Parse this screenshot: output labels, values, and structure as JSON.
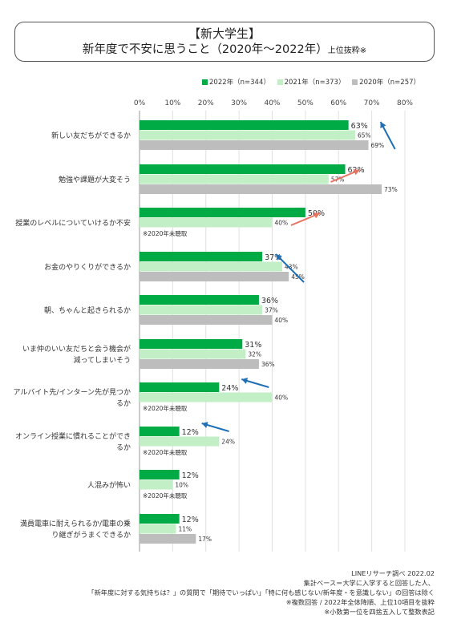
{
  "title": {
    "line1": "【新大学生】",
    "line2": "新年度で不安に思うこと（2020年～2022年）",
    "line2_suffix": "上位抜粋※"
  },
  "colors": {
    "s2022": "#00aa44",
    "s2021": "#c3efc7",
    "s2020": "#bdbdbd",
    "arrow_up": "#e8735f",
    "arrow_down": "#1f6fb5"
  },
  "chart_data": {
    "type": "bar",
    "orientation": "horizontal",
    "xlim": [
      0,
      80
    ],
    "xticks": [
      "0%",
      "10%",
      "20%",
      "30%",
      "40%",
      "50%",
      "60%",
      "70%",
      "80%"
    ],
    "legend_position": "top-right",
    "grid": true,
    "categories": [
      [
        "新しい友だちができるか"
      ],
      [
        "勉強や課題が大変そう"
      ],
      [
        "授業のレベルについていけるか不安"
      ],
      [
        "お金のやりくりができるか"
      ],
      [
        "朝、ちゃんと起きられるか"
      ],
      [
        "いま仲のいい友だちと会う機会が",
        "減ってしまいそう"
      ],
      [
        "アルバイト先/インターン先が見つか",
        "るか"
      ],
      [
        "オンライン授業に慣れることができ",
        "るか"
      ],
      [
        "人混みが怖い"
      ],
      [
        "満員電車に耐えられるか/電車の乗",
        "り継ぎがうまくできるか"
      ]
    ],
    "series": [
      {
        "name": "2022年（n=344）",
        "values": [
          63,
          62,
          50,
          37,
          36,
          31,
          24,
          12,
          12,
          12
        ]
      },
      {
        "name": "2021年（n=373）",
        "values": [
          65,
          57,
          40,
          43,
          37,
          32,
          40,
          24,
          10,
          11
        ]
      },
      {
        "name": "2020年（n=257）",
        "values": [
          69,
          73,
          null,
          45,
          40,
          36,
          null,
          null,
          null,
          17
        ]
      }
    ],
    "labels_2022": [
      "63%",
      "62%",
      "50%",
      "37%",
      "36%",
      "31%",
      "24%",
      "12%",
      "12%",
      "12%"
    ],
    "labels_2021": [
      "65%",
      "57%",
      "40%",
      "43%",
      "37%",
      "32%",
      "40%",
      "24%",
      "10%",
      "11%"
    ],
    "labels_2020": [
      "69%",
      "73%",
      "",
      "45%",
      "40%",
      "36%",
      "",
      "",
      "",
      "17%"
    ],
    "notes": [
      "",
      "",
      "※2020年未聴取",
      "",
      "",
      "",
      "※2020年未聴取",
      "※2020年未聴取",
      "※2020年未聴取",
      ""
    ],
    "trend_arrows": [
      "down",
      "up",
      "up",
      "down",
      "",
      "",
      "down",
      "down",
      "",
      ""
    ]
  },
  "footer": [
    "LINEリサーチ調べ 2022.02",
    "集計ベース＝大学に入学すると回答した人、",
    "「新年度に対する気持ちは？」の質問で「期待でいっぱい」「特に何も感じない/新年度・を意識しない」の回答は除く",
    "※複数回答 / 2022年全体降順、上位10項目を抜粋",
    "※小数第一位を四捨五入して整数表記"
  ]
}
